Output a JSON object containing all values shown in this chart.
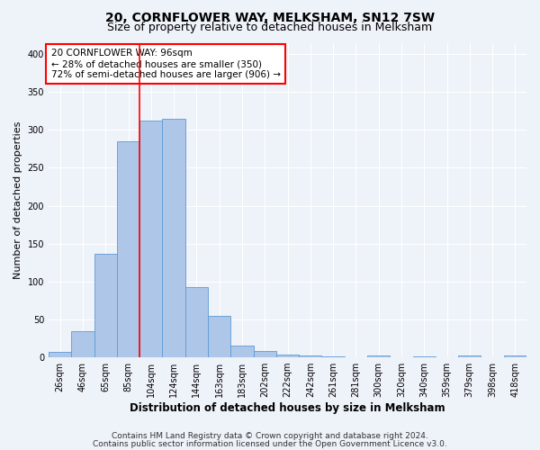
{
  "title": "20, CORNFLOWER WAY, MELKSHAM, SN12 7SW",
  "subtitle": "Size of property relative to detached houses in Melksham",
  "xlabel": "Distribution of detached houses by size in Melksham",
  "ylabel": "Number of detached properties",
  "bar_labels": [
    "26sqm",
    "46sqm",
    "65sqm",
    "85sqm",
    "104sqm",
    "124sqm",
    "144sqm",
    "163sqm",
    "183sqm",
    "202sqm",
    "222sqm",
    "242sqm",
    "261sqm",
    "281sqm",
    "300sqm",
    "320sqm",
    "340sqm",
    "359sqm",
    "379sqm",
    "398sqm",
    "418sqm"
  ],
  "bar_values": [
    7,
    35,
    137,
    285,
    312,
    315,
    93,
    55,
    16,
    9,
    4,
    2,
    1,
    0,
    2,
    0,
    1,
    0,
    2,
    0,
    2
  ],
  "bar_color": "#aec6e8",
  "bar_edge_color": "#5b9bd5",
  "property_line_x": 3.5,
  "annotation_text_line1": "20 CORNFLOWER WAY: 96sqm",
  "annotation_text_line2": "← 28% of detached houses are smaller (350)",
  "annotation_text_line3": "72% of semi-detached houses are larger (906) →",
  "ylim": [
    0,
    415
  ],
  "yticks": [
    0,
    50,
    100,
    150,
    200,
    250,
    300,
    350,
    400
  ],
  "footer_line1": "Contains HM Land Registry data © Crown copyright and database right 2024.",
  "footer_line2": "Contains public sector information licensed under the Open Government Licence v3.0.",
  "bg_color": "#eef2f9",
  "grid_color": "#ffffff",
  "title_fontsize": 10,
  "subtitle_fontsize": 9,
  "ylabel_fontsize": 8,
  "xlabel_fontsize": 8.5,
  "tick_fontsize": 7,
  "annotation_fontsize": 7.5,
  "footer_fontsize": 6.5
}
